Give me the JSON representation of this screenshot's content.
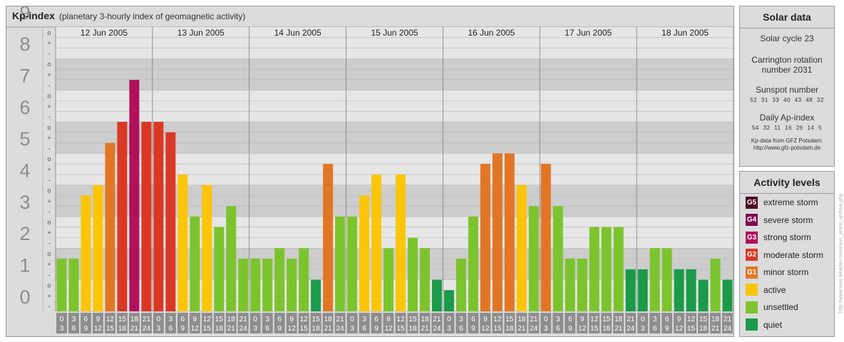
{
  "header": {
    "title": "Kp-index",
    "subtitle": "(planetary 3-hourly index of geomagnetic activity)"
  },
  "chart_data": {
    "type": "bar",
    "ylim": [
      0,
      9
    ],
    "y_ticks": [
      "0",
      "1",
      "2",
      "3",
      "4",
      "5",
      "6",
      "7",
      "8",
      "9"
    ],
    "minor_ticks": [
      "o",
      "+",
      "-"
    ],
    "days": [
      "12 Jun 2005",
      "13 Jun 2005",
      "14 Jun 2005",
      "15 Jun 2005",
      "16 Jun 2005",
      "17 Jun 2005",
      "18 Jun 2005"
    ],
    "interval_start": [
      "0",
      "3",
      "6",
      "9",
      "12",
      "15",
      "18",
      "21"
    ],
    "interval_end": [
      "3",
      "6",
      "9",
      "12",
      "15",
      "18",
      "21",
      "24"
    ],
    "values": [
      1.67,
      1.67,
      3.67,
      4.0,
      5.33,
      6.0,
      7.33,
      6.0,
      6.0,
      5.67,
      4.33,
      3.0,
      4.0,
      2.67,
      3.33,
      1.67,
      1.67,
      1.67,
      2.0,
      1.67,
      2.0,
      1.0,
      4.67,
      3.0,
      3.0,
      3.67,
      4.33,
      2.0,
      4.33,
      2.33,
      2.0,
      1.0,
      0.67,
      1.67,
      3.0,
      4.67,
      5.0,
      5.0,
      4.0,
      3.33,
      4.67,
      3.33,
      1.67,
      1.67,
      2.67,
      2.67,
      2.67,
      1.33,
      1.33,
      2.0,
      2.0,
      1.33,
      1.33,
      1.0,
      1.67,
      1.0
    ]
  },
  "colors": {
    "quiet": "#1b9a4a",
    "unsettled": "#7cc42d",
    "active": "#fbc50a",
    "minor": "#e27625",
    "moderate": "#d93825",
    "strong": "#b2105a",
    "severe": "#800a4e",
    "extreme": "#4a0024"
  },
  "solar": {
    "title": "Solar data",
    "cycle": "Solar cycle 23",
    "carrington_1": "Carrington rotation",
    "carrington_2": "number 2031",
    "sunspot_label": "Sunspot number",
    "sunspot_values": "52 31 33 40 43 48 32",
    "ap_label": "Daily Ap-index",
    "ap_values": "54 32 11 16 26 14 5",
    "source_1": "Kp-data from GFZ Potsdam:",
    "source_2": "http://www.gfz-potsdam.de"
  },
  "activity": {
    "title": "Activity levels",
    "levels": [
      {
        "code": "G5",
        "label": "extreme storm"
      },
      {
        "code": "G4",
        "label": "severe storm"
      },
      {
        "code": "G3",
        "label": "strong storm"
      },
      {
        "code": "G2",
        "label": "moderate storm"
      },
      {
        "code": "G1",
        "label": "minor storm"
      },
      {
        "code": "",
        "label": "active"
      },
      {
        "code": "",
        "label": "unsettled"
      },
      {
        "code": "",
        "label": "quiet"
      }
    ]
  },
  "credit": "http://www.tesis.lebedev.ru/en/sun_storm_archive.php"
}
